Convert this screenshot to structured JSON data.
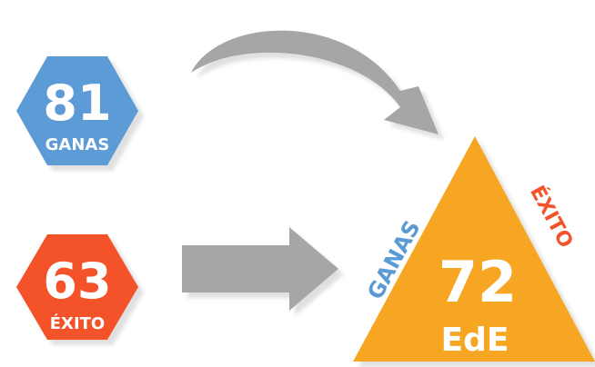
{
  "ganas": {
    "value": "81",
    "label": "GANAS",
    "color": "#5B9BD5"
  },
  "exito": {
    "value": "63",
    "label": "ÉXITO",
    "color": "#F4532A"
  },
  "ede": {
    "value": "72",
    "label": "EdE",
    "color": "#F6A623",
    "side_left": "GANAS",
    "side_right": "ÉXITO"
  },
  "arrow_color": "#A6A6A6"
}
